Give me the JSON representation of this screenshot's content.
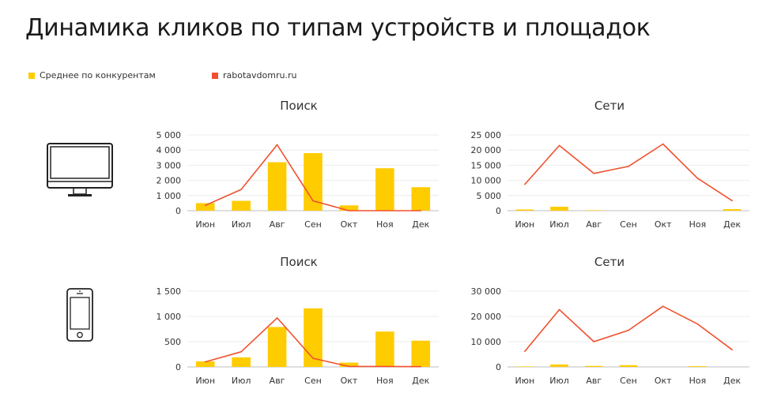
{
  "page": {
    "title": "Динамика кликов по типам устройств и площадок"
  },
  "legend": [
    {
      "label": "Среднее по конкурентам",
      "color": "#FFCC00"
    },
    {
      "label": "rabotavdomru.ru",
      "color": "#F0502E"
    }
  ],
  "devices": [
    {
      "name": "desktop",
      "icon": "desktop-monitor-icon"
    },
    {
      "name": "mobile",
      "icon": "smartphone-icon"
    }
  ],
  "chart_data": [
    {
      "type": "bar",
      "title": "Поиск",
      "categories": [
        "Июн",
        "Июл",
        "Авг",
        "Сен",
        "Окт",
        "Ноя",
        "Дек"
      ],
      "ylim": [
        0,
        5000
      ],
      "yticks": [
        0,
        1000,
        2000,
        3000,
        4000,
        5000
      ],
      "ytick_labels": [
        "0",
        "1 000",
        "2 000",
        "3 000",
        "4 000",
        "5 000"
      ],
      "series": [
        {
          "name": "Среднее по конкурентам",
          "type": "bar",
          "color": "#FFCC00",
          "values": [
            500,
            650,
            3200,
            3800,
            350,
            2800,
            1550
          ]
        },
        {
          "name": "rabotavdomru.ru",
          "type": "line",
          "color": "#F0502E",
          "values": [
            350,
            1400,
            4350,
            650,
            0,
            0,
            0
          ]
        }
      ]
    },
    {
      "type": "bar",
      "title": "Сети",
      "categories": [
        "Июн",
        "Июл",
        "Авг",
        "Сен",
        "Окт",
        "Ноя",
        "Дек"
      ],
      "ylim": [
        0,
        25000
      ],
      "yticks": [
        0,
        5000,
        10000,
        15000,
        20000,
        25000
      ],
      "ytick_labels": [
        "0",
        "5 000",
        "10 000",
        "15 000",
        "20 000",
        "25 000"
      ],
      "series": [
        {
          "name": "Среднее по конкурентам",
          "type": "bar",
          "color": "#FFCC00",
          "values": [
            400,
            1300,
            150,
            0,
            0,
            0,
            500
          ]
        },
        {
          "name": "rabotavdomru.ru",
          "type": "line",
          "color": "#F0502E",
          "values": [
            8700,
            21500,
            12300,
            14600,
            22000,
            10700,
            3300
          ]
        }
      ]
    },
    {
      "type": "bar",
      "title": "Поиск",
      "categories": [
        "Июн",
        "Июл",
        "Авг",
        "Сен",
        "Окт",
        "Ноя",
        "Дек"
      ],
      "ylim": [
        0,
        1500
      ],
      "yticks": [
        0,
        500,
        1000,
        1500
      ],
      "ytick_labels": [
        "0",
        "500",
        "1 000",
        "1 500"
      ],
      "series": [
        {
          "name": "Среднее по конкурентам",
          "type": "bar",
          "color": "#FFCC00",
          "values": [
            110,
            190,
            790,
            1160,
            85,
            700,
            520
          ]
        },
        {
          "name": "rabotavdomru.ru",
          "type": "line",
          "color": "#F0502E",
          "values": [
            100,
            300,
            970,
            170,
            10,
            10,
            5
          ]
        }
      ]
    },
    {
      "type": "bar",
      "title": "Сети",
      "categories": [
        "Июн",
        "Июл",
        "Авг",
        "Сен",
        "Окт",
        "Ноя",
        "Дек"
      ],
      "ylim": [
        0,
        30000
      ],
      "yticks": [
        0,
        10000,
        20000,
        30000
      ],
      "ytick_labels": [
        "0",
        "10 000",
        "20 000",
        "30 000"
      ],
      "series": [
        {
          "name": "Среднее по конкурентам",
          "type": "bar",
          "color": "#FFCC00",
          "values": [
            200,
            1000,
            400,
            700,
            0,
            300,
            0
          ]
        },
        {
          "name": "rabotavdomru.ru",
          "type": "line",
          "color": "#F0502E",
          "values": [
            6200,
            22700,
            10000,
            14500,
            24000,
            17000,
            6800
          ]
        }
      ]
    }
  ]
}
